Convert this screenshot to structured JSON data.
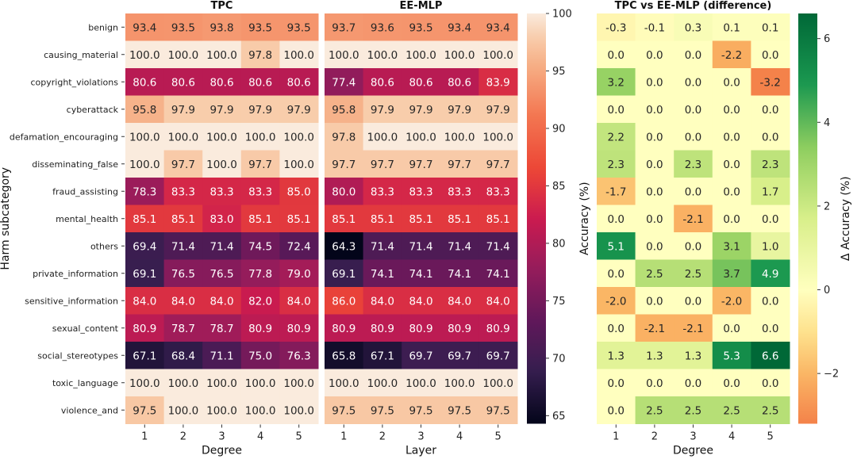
{
  "chart_data": [
    {
      "type": "heatmap",
      "title": "TPC",
      "xlabel": "Degree",
      "ylabel": "Harm subcategory",
      "x": [
        "1",
        "2",
        "3",
        "4",
        "5"
      ],
      "y": [
        "benign",
        "causing_material",
        "copyright_violations",
        "cyberattack",
        "defamation_encouraging",
        "disseminating_false",
        "fraud_assisting",
        "mental_health",
        "others",
        "private_information",
        "sensitive_information",
        "sexual_content",
        "social_stereotypes",
        "toxic_language",
        "violence_and"
      ],
      "values": [
        [
          93.4,
          93.5,
          93.8,
          93.5,
          93.5
        ],
        [
          100.0,
          100.0,
          100.0,
          97.8,
          100.0
        ],
        [
          80.6,
          80.6,
          80.6,
          80.6,
          80.6
        ],
        [
          95.8,
          97.9,
          97.9,
          97.9,
          97.9
        ],
        [
          100.0,
          100.0,
          100.0,
          100.0,
          100.0
        ],
        [
          100.0,
          97.7,
          100.0,
          97.7,
          100.0
        ],
        [
          78.3,
          83.3,
          83.3,
          83.3,
          85.0
        ],
        [
          85.1,
          85.1,
          83.0,
          85.1,
          85.1
        ],
        [
          69.4,
          71.4,
          71.4,
          74.5,
          72.4
        ],
        [
          69.1,
          76.5,
          76.5,
          77.8,
          79.0
        ],
        [
          84.0,
          84.0,
          84.0,
          82.0,
          84.0
        ],
        [
          80.9,
          78.7,
          78.7,
          80.9,
          80.9
        ],
        [
          67.1,
          68.4,
          71.1,
          75.0,
          76.3
        ],
        [
          100.0,
          100.0,
          100.0,
          100.0,
          100.0
        ],
        [
          97.5,
          100.0,
          100.0,
          100.0,
          100.0
        ]
      ]
    },
    {
      "type": "heatmap",
      "title": "EE-MLP",
      "xlabel": "Layer",
      "x": [
        "1",
        "2",
        "3",
        "4",
        "5"
      ],
      "values": [
        [
          93.7,
          93.6,
          93.5,
          93.4,
          93.4
        ],
        [
          100.0,
          100.0,
          100.0,
          100.0,
          100.0
        ],
        [
          77.4,
          80.6,
          80.6,
          80.6,
          83.9
        ],
        [
          95.8,
          97.9,
          97.9,
          97.9,
          97.9
        ],
        [
          97.8,
          100.0,
          100.0,
          100.0,
          100.0
        ],
        [
          97.7,
          97.7,
          97.7,
          97.7,
          97.7
        ],
        [
          80.0,
          83.3,
          83.3,
          83.3,
          83.3
        ],
        [
          85.1,
          85.1,
          85.1,
          85.1,
          85.1
        ],
        [
          64.3,
          71.4,
          71.4,
          71.4,
          71.4
        ],
        [
          69.1,
          74.1,
          74.1,
          74.1,
          74.1
        ],
        [
          86.0,
          84.0,
          84.0,
          84.0,
          84.0
        ],
        [
          80.9,
          80.9,
          80.9,
          80.9,
          80.9
        ],
        [
          65.8,
          67.1,
          69.7,
          69.7,
          69.7
        ],
        [
          100.0,
          100.0,
          100.0,
          100.0,
          100.0
        ],
        [
          97.5,
          97.5,
          97.5,
          97.5,
          97.5
        ]
      ],
      "colorbar": {
        "label": "Accuracy (%)",
        "range": [
          64.3,
          100
        ],
        "ticks": [
          65,
          70,
          75,
          80,
          85,
          90,
          95,
          100
        ],
        "colormap": "rocket"
      }
    },
    {
      "type": "heatmap",
      "title": "TPC vs EE-MLP (difference)",
      "xlabel": "Degree",
      "x": [
        "1",
        "2",
        "3",
        "4",
        "5"
      ],
      "values": [
        [
          -0.3,
          -0.1,
          0.3,
          0.1,
          0.1
        ],
        [
          0.0,
          0.0,
          0.0,
          -2.2,
          0.0
        ],
        [
          3.2,
          0.0,
          0.0,
          0.0,
          -3.2
        ],
        [
          0.0,
          0.0,
          0.0,
          0.0,
          0.0
        ],
        [
          2.2,
          0.0,
          0.0,
          0.0,
          0.0
        ],
        [
          2.3,
          0.0,
          2.3,
          0.0,
          2.3
        ],
        [
          -1.7,
          0.0,
          0.0,
          0.0,
          1.7
        ],
        [
          0.0,
          0.0,
          -2.1,
          0.0,
          0.0
        ],
        [
          5.1,
          0.0,
          0.0,
          3.1,
          1.0
        ],
        [
          0.0,
          2.5,
          2.5,
          3.7,
          4.9
        ],
        [
          -2.0,
          0.0,
          0.0,
          -2.0,
          0.0
        ],
        [
          0.0,
          -2.1,
          -2.1,
          0.0,
          0.0
        ],
        [
          1.3,
          1.3,
          1.3,
          5.3,
          6.6
        ],
        [
          0.0,
          0.0,
          0.0,
          0.0,
          0.0
        ],
        [
          0.0,
          2.5,
          2.5,
          2.5,
          2.5
        ]
      ],
      "colorbar": {
        "label": "Δ Accuracy (%)",
        "range": [
          -3.2,
          6.6
        ],
        "ticks": [
          -2,
          0,
          2,
          4,
          6
        ],
        "tick_labels": [
          "−2",
          "0",
          "2",
          "4",
          "6"
        ],
        "colormap": "RdYlGn"
      }
    }
  ]
}
